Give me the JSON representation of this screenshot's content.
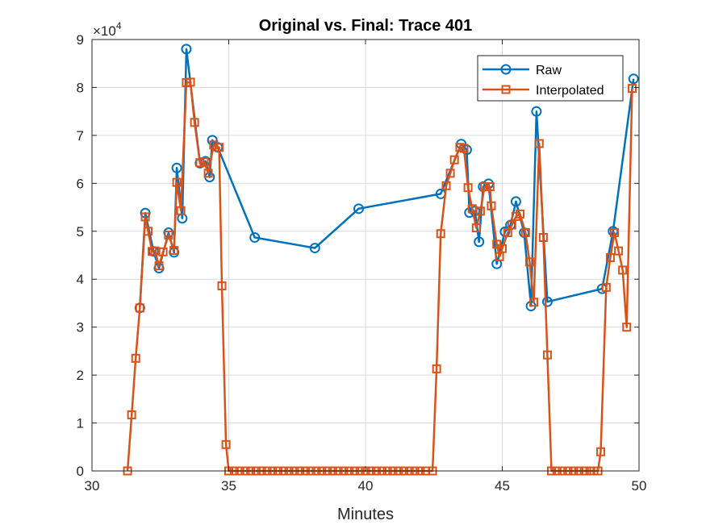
{
  "chart_data": {
    "type": "line",
    "title": "Original vs. Final: Trace 401",
    "xlabel": "Minutes",
    "ylabel": "",
    "xlim": [
      30,
      50
    ],
    "ylim": [
      0,
      90000
    ],
    "xticks": [
      "30",
      "35",
      "40",
      "45",
      "50"
    ],
    "yticks": [
      "0",
      "1",
      "2",
      "3",
      "4",
      "5",
      "6",
      "7",
      "8",
      "9"
    ],
    "y_exponent_label": "×10",
    "y_exponent_power": "4",
    "grid": true,
    "legend_position": "top-right",
    "colors": {
      "Raw": "#0072BD",
      "Interpolated": "#D95319"
    },
    "series": [
      {
        "name": "Raw",
        "marker": "circle",
        "points": [
          [
            31.75,
            34000
          ],
          [
            31.95,
            53800
          ],
          [
            32.25,
            45800
          ],
          [
            32.45,
            42300
          ],
          [
            32.8,
            49700
          ],
          [
            33.0,
            45600
          ],
          [
            33.1,
            63200
          ],
          [
            33.3,
            52700
          ],
          [
            33.45,
            88000
          ],
          [
            33.95,
            64200
          ],
          [
            34.15,
            64600
          ],
          [
            34.3,
            61300
          ],
          [
            34.4,
            69000
          ],
          [
            34.6,
            67500
          ],
          [
            35.95,
            48700
          ],
          [
            38.15,
            46500
          ],
          [
            39.75,
            54700
          ],
          [
            42.75,
            57800
          ],
          [
            43.5,
            68200
          ],
          [
            43.7,
            67000
          ],
          [
            43.8,
            53900
          ],
          [
            44.0,
            54200
          ],
          [
            44.15,
            47800
          ],
          [
            44.3,
            59300
          ],
          [
            44.5,
            59900
          ],
          [
            44.8,
            43200
          ],
          [
            45.1,
            49900
          ],
          [
            45.3,
            51300
          ],
          [
            45.5,
            56200
          ],
          [
            45.8,
            49700
          ],
          [
            46.05,
            34400
          ],
          [
            46.25,
            75000
          ],
          [
            46.65,
            35300
          ],
          [
            48.65,
            38000
          ],
          [
            49.05,
            50000
          ],
          [
            49.8,
            81800
          ]
        ]
      },
      {
        "name": "Interpolated",
        "marker": "square",
        "points": [
          [
            31.3,
            0
          ],
          [
            31.45,
            11700
          ],
          [
            31.6,
            23500
          ],
          [
            31.75,
            34000
          ],
          [
            31.95,
            53000
          ],
          [
            32.05,
            50000
          ],
          [
            32.2,
            45800
          ],
          [
            32.3,
            45900
          ],
          [
            32.45,
            42800
          ],
          [
            32.6,
            45700
          ],
          [
            32.8,
            49200
          ],
          [
            33.0,
            46000
          ],
          [
            33.1,
            60200
          ],
          [
            33.25,
            54300
          ],
          [
            33.45,
            81000
          ],
          [
            33.6,
            81100
          ],
          [
            33.75,
            72700
          ],
          [
            33.95,
            64300
          ],
          [
            34.1,
            64500
          ],
          [
            34.25,
            62100
          ],
          [
            34.45,
            68000
          ],
          [
            34.65,
            67500
          ],
          [
            34.75,
            38600
          ],
          [
            34.9,
            5500
          ],
          [
            35.0,
            0
          ],
          [
            35.2,
            0
          ],
          [
            35.4,
            0
          ],
          [
            35.6,
            0
          ],
          [
            35.8,
            0
          ],
          [
            36.0,
            0
          ],
          [
            36.2,
            0
          ],
          [
            36.4,
            0
          ],
          [
            36.6,
            0
          ],
          [
            36.8,
            0
          ],
          [
            37.0,
            0
          ],
          [
            37.2,
            0
          ],
          [
            37.4,
            0
          ],
          [
            37.6,
            0
          ],
          [
            37.8,
            0
          ],
          [
            38.0,
            0
          ],
          [
            38.2,
            0
          ],
          [
            38.4,
            0
          ],
          [
            38.6,
            0
          ],
          [
            38.8,
            0
          ],
          [
            39.0,
            0
          ],
          [
            39.2,
            0
          ],
          [
            39.4,
            0
          ],
          [
            39.6,
            0
          ],
          [
            39.8,
            0
          ],
          [
            40.0,
            0
          ],
          [
            40.2,
            0
          ],
          [
            40.4,
            0
          ],
          [
            40.6,
            0
          ],
          [
            40.8,
            0
          ],
          [
            41.0,
            0
          ],
          [
            41.2,
            0
          ],
          [
            41.4,
            0
          ],
          [
            41.6,
            0
          ],
          [
            41.8,
            0
          ],
          [
            42.0,
            0
          ],
          [
            42.2,
            0
          ],
          [
            42.45,
            0
          ],
          [
            42.6,
            21300
          ],
          [
            42.75,
            49500
          ],
          [
            42.95,
            59500
          ],
          [
            43.1,
            62100
          ],
          [
            43.25,
            64900
          ],
          [
            43.45,
            67500
          ],
          [
            43.6,
            67300
          ],
          [
            43.75,
            59100
          ],
          [
            43.9,
            54700
          ],
          [
            44.05,
            50700
          ],
          [
            44.2,
            54200
          ],
          [
            44.35,
            59300
          ],
          [
            44.55,
            59300
          ],
          [
            44.6,
            55300
          ],
          [
            44.8,
            47300
          ],
          [
            44.9,
            44700
          ],
          [
            45.0,
            46400
          ],
          [
            45.2,
            49700
          ],
          [
            45.35,
            51300
          ],
          [
            45.5,
            53100
          ],
          [
            45.65,
            53600
          ],
          [
            45.85,
            49700
          ],
          [
            46.0,
            43600
          ],
          [
            46.15,
            35200
          ],
          [
            46.35,
            68300
          ],
          [
            46.5,
            48700
          ],
          [
            46.65,
            24200
          ],
          [
            46.8,
            0
          ],
          [
            47.0,
            0
          ],
          [
            47.2,
            0
          ],
          [
            47.4,
            0
          ],
          [
            47.6,
            0
          ],
          [
            47.8,
            0
          ],
          [
            48.0,
            0
          ],
          [
            48.2,
            0
          ],
          [
            48.35,
            0
          ],
          [
            48.5,
            0
          ],
          [
            48.6,
            4000
          ],
          [
            48.8,
            38300
          ],
          [
            48.95,
            44500
          ],
          [
            49.1,
            49700
          ],
          [
            49.25,
            45900
          ],
          [
            49.4,
            41900
          ],
          [
            49.55,
            30000
          ],
          [
            49.75,
            79800
          ]
        ]
      }
    ]
  }
}
